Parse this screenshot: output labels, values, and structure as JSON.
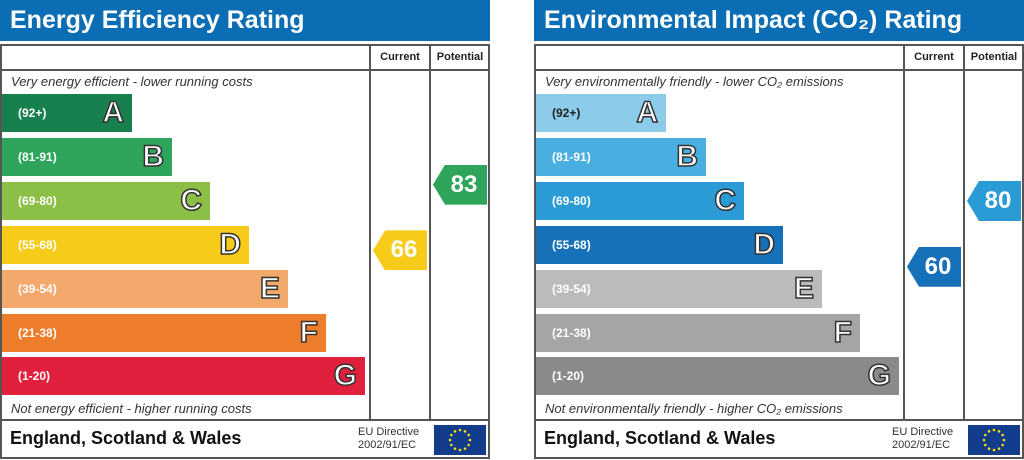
{
  "chart_data": [
    {
      "type": "bar",
      "title": "Energy Efficiency Rating",
      "columns": [
        "Current",
        "Potential"
      ],
      "top_note": "Very energy efficient - lower running costs",
      "bottom_note": "Not energy efficient - higher running costs",
      "bands": [
        {
          "range": "(92+)",
          "letter": "A",
          "color": "#17804e"
        },
        {
          "range": "(81-91)",
          "letter": "B",
          "color": "#2ea55a"
        },
        {
          "range": "(69-80)",
          "letter": "C",
          "color": "#8cbf45"
        },
        {
          "range": "(55-68)",
          "letter": "D",
          "color": "#f6cb1a"
        },
        {
          "range": "(39-54)",
          "letter": "E",
          "color": "#f2a96b"
        },
        {
          "range": "(21-38)",
          "letter": "F",
          "color": "#ed7d2a"
        },
        {
          "range": "(1-20)",
          "letter": "G",
          "color": "#e0203d"
        }
      ],
      "current": {
        "value": 66,
        "color": "#f6cb1a"
      },
      "potential": {
        "value": 83,
        "color": "#2ea55a"
      },
      "footer": "England, Scotland & Wales",
      "directive_1": "EU Directive",
      "directive_2": "2002/91/EC"
    },
    {
      "type": "bar",
      "title": "Environmental Impact (CO₂) Rating",
      "columns": [
        "Current",
        "Potential"
      ],
      "top_note": "Very environmentally friendly - lower CO₂ emissions",
      "bottom_note": "Not environmentally friendly - higher CO₂ emissions",
      "bands": [
        {
          "range": "(92+)",
          "letter": "A",
          "color": "#8ccbea",
          "dark": true
        },
        {
          "range": "(81-91)",
          "letter": "B",
          "color": "#49aee0"
        },
        {
          "range": "(69-80)",
          "letter": "C",
          "color": "#2a9bd4"
        },
        {
          "range": "(55-68)",
          "letter": "D",
          "color": "#1671b8"
        },
        {
          "range": "(39-54)",
          "letter": "E",
          "color": "#bbbbbb"
        },
        {
          "range": "(21-38)",
          "letter": "F",
          "color": "#a5a5a5"
        },
        {
          "range": "(1-20)",
          "letter": "G",
          "color": "#8a8a8a"
        }
      ],
      "current": {
        "value": 60,
        "color": "#1671b8"
      },
      "potential": {
        "value": 80,
        "color": "#2a9bd4"
      },
      "footer": "England, Scotland & Wales",
      "directive_1": "EU Directive",
      "directive_2": "2002/91/EC"
    }
  ]
}
